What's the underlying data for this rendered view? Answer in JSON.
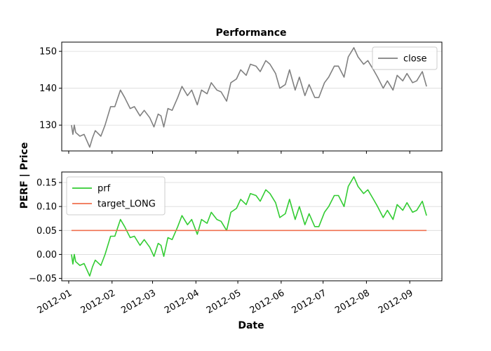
{
  "chart_data": [
    {
      "type": "line",
      "title": "Performance",
      "xlabel": "",
      "ylabel": "",
      "ylim": [
        123,
        152.5
      ],
      "yticks": [
        130,
        140,
        150
      ],
      "xlim": [
        "2011-12-27",
        "2012-09-24"
      ],
      "grid": "horizontal",
      "legend_position": "top-right",
      "series": [
        {
          "name": "close",
          "color": "#808080",
          "x": [
            "2012-01-03",
            "2012-01-04",
            "2012-01-05",
            "2012-01-06",
            "2012-01-09",
            "2012-01-12",
            "2012-01-16",
            "2012-01-18",
            "2012-01-20",
            "2012-01-24",
            "2012-01-27",
            "2012-01-31",
            "2012-02-03",
            "2012-02-07",
            "2012-02-10",
            "2012-02-14",
            "2012-02-17",
            "2012-02-21",
            "2012-02-24",
            "2012-02-28",
            "2012-03-02",
            "2012-03-05",
            "2012-03-07",
            "2012-03-09",
            "2012-03-12",
            "2012-03-15",
            "2012-03-19",
            "2012-03-22",
            "2012-03-26",
            "2012-03-29",
            "2012-04-02",
            "2012-04-05",
            "2012-04-09",
            "2012-04-12",
            "2012-04-16",
            "2012-04-19",
            "2012-04-23",
            "2012-04-26",
            "2012-04-30",
            "2012-05-03",
            "2012-05-07",
            "2012-05-10",
            "2012-05-14",
            "2012-05-17",
            "2012-05-21",
            "2012-05-24",
            "2012-05-28",
            "2012-05-31",
            "2012-06-04",
            "2012-06-07",
            "2012-06-11",
            "2012-06-14",
            "2012-06-18",
            "2012-06-21",
            "2012-06-25",
            "2012-06-28",
            "2012-07-02",
            "2012-07-05",
            "2012-07-09",
            "2012-07-12",
            "2012-07-16",
            "2012-07-19",
            "2012-07-23",
            "2012-07-26",
            "2012-07-30",
            "2012-08-02",
            "2012-08-06",
            "2012-08-09",
            "2012-08-13",
            "2012-08-16",
            "2012-08-20",
            "2012-08-23",
            "2012-08-27",
            "2012-08-30",
            "2012-09-03",
            "2012-09-06",
            "2012-09-10",
            "2012-09-13"
          ],
          "values": [
            130,
            127.5,
            130,
            128,
            127,
            127.5,
            124,
            126.5,
            128.5,
            127,
            130,
            135,
            135,
            139.5,
            137.5,
            134.5,
            135,
            132.5,
            134,
            132,
            129.5,
            133,
            132.5,
            129.5,
            134.5,
            134,
            137.5,
            140.5,
            138,
            139.5,
            135.5,
            139.5,
            138.5,
            141.5,
            139.5,
            139,
            136.5,
            141.5,
            142.5,
            145,
            143.5,
            146.5,
            146,
            144.5,
            147.5,
            146.5,
            144,
            140,
            141,
            145,
            139.5,
            143,
            138,
            141,
            137.5,
            137.5,
            141.5,
            143,
            146,
            146,
            143,
            148.5,
            151,
            148.5,
            146.5,
            147.5,
            145,
            143,
            140,
            142,
            139.5,
            143.5,
            142,
            144,
            141.5,
            142,
            144.5,
            140.5
          ]
        }
      ]
    },
    {
      "type": "line",
      "title": "",
      "xlabel": "Date",
      "ylabel": "",
      "ylim": [
        -0.055,
        0.172
      ],
      "yticks": [
        -0.05,
        0.0,
        0.05,
        0.1,
        0.15
      ],
      "ytick_labels": [
        "−0.05",
        "0.00",
        "0.05",
        "0.10",
        "0.15"
      ],
      "xlim": [
        "2011-12-27",
        "2012-09-24"
      ],
      "xticks": [
        "2012-01-01",
        "2012-02-01",
        "2012-03-01",
        "2012-04-01",
        "2012-05-01",
        "2012-06-01",
        "2012-07-01",
        "2012-08-01",
        "2012-09-01"
      ],
      "xtick_labels": [
        "2012-01",
        "2012-02",
        "2012-03",
        "2012-04",
        "2012-05",
        "2012-06",
        "2012-07",
        "2012-08",
        "2012-09"
      ],
      "grid": "horizontal",
      "legend_position": "top-left",
      "series": [
        {
          "name": "prf",
          "color": "#33cc33",
          "x": [
            "2012-01-03",
            "2012-01-04",
            "2012-01-05",
            "2012-01-06",
            "2012-01-09",
            "2012-01-12",
            "2012-01-16",
            "2012-01-18",
            "2012-01-20",
            "2012-01-24",
            "2012-01-27",
            "2012-01-31",
            "2012-02-03",
            "2012-02-07",
            "2012-02-10",
            "2012-02-14",
            "2012-02-17",
            "2012-02-21",
            "2012-02-24",
            "2012-02-28",
            "2012-03-02",
            "2012-03-05",
            "2012-03-07",
            "2012-03-09",
            "2012-03-12",
            "2012-03-15",
            "2012-03-19",
            "2012-03-22",
            "2012-03-26",
            "2012-03-29",
            "2012-04-02",
            "2012-04-05",
            "2012-04-09",
            "2012-04-12",
            "2012-04-16",
            "2012-04-19",
            "2012-04-23",
            "2012-04-26",
            "2012-04-30",
            "2012-05-03",
            "2012-05-07",
            "2012-05-10",
            "2012-05-14",
            "2012-05-17",
            "2012-05-21",
            "2012-05-24",
            "2012-05-28",
            "2012-05-31",
            "2012-06-04",
            "2012-06-07",
            "2012-06-11",
            "2012-06-14",
            "2012-06-18",
            "2012-06-21",
            "2012-06-25",
            "2012-06-28",
            "2012-07-02",
            "2012-07-05",
            "2012-07-09",
            "2012-07-12",
            "2012-07-16",
            "2012-07-19",
            "2012-07-23",
            "2012-07-26",
            "2012-07-30",
            "2012-08-02",
            "2012-08-06",
            "2012-08-09",
            "2012-08-13",
            "2012-08-16",
            "2012-08-20",
            "2012-08-23",
            "2012-08-27",
            "2012-08-30",
            "2012-09-03",
            "2012-09-06",
            "2012-09-10",
            "2012-09-13"
          ],
          "values": [
            0.0,
            -0.02,
            0.0,
            -0.015,
            -0.023,
            -0.019,
            -0.045,
            -0.026,
            -0.012,
            -0.023,
            0.0,
            0.038,
            0.038,
            0.073,
            0.058,
            0.035,
            0.038,
            0.019,
            0.031,
            0.015,
            -0.004,
            0.023,
            0.019,
            -0.004,
            0.035,
            0.031,
            0.058,
            0.081,
            0.062,
            0.073,
            0.042,
            0.073,
            0.065,
            0.088,
            0.073,
            0.069,
            0.05,
            0.088,
            0.096,
            0.115,
            0.104,
            0.127,
            0.123,
            0.111,
            0.135,
            0.127,
            0.108,
            0.077,
            0.085,
            0.115,
            0.073,
            0.1,
            0.062,
            0.085,
            0.058,
            0.058,
            0.088,
            0.1,
            0.123,
            0.123,
            0.1,
            0.142,
            0.162,
            0.142,
            0.127,
            0.135,
            0.115,
            0.1,
            0.077,
            0.092,
            0.073,
            0.104,
            0.092,
            0.108,
            0.088,
            0.092,
            0.111,
            0.081
          ]
        },
        {
          "name": "target_LONG",
          "color": "#f0704f",
          "x": [
            "2012-01-03",
            "2012-09-13"
          ],
          "values": [
            0.05,
            0.05
          ]
        }
      ]
    }
  ],
  "labels": {
    "title": "Performance",
    "shared_ylabel": "PERF | Price",
    "xlabel": "Date"
  }
}
